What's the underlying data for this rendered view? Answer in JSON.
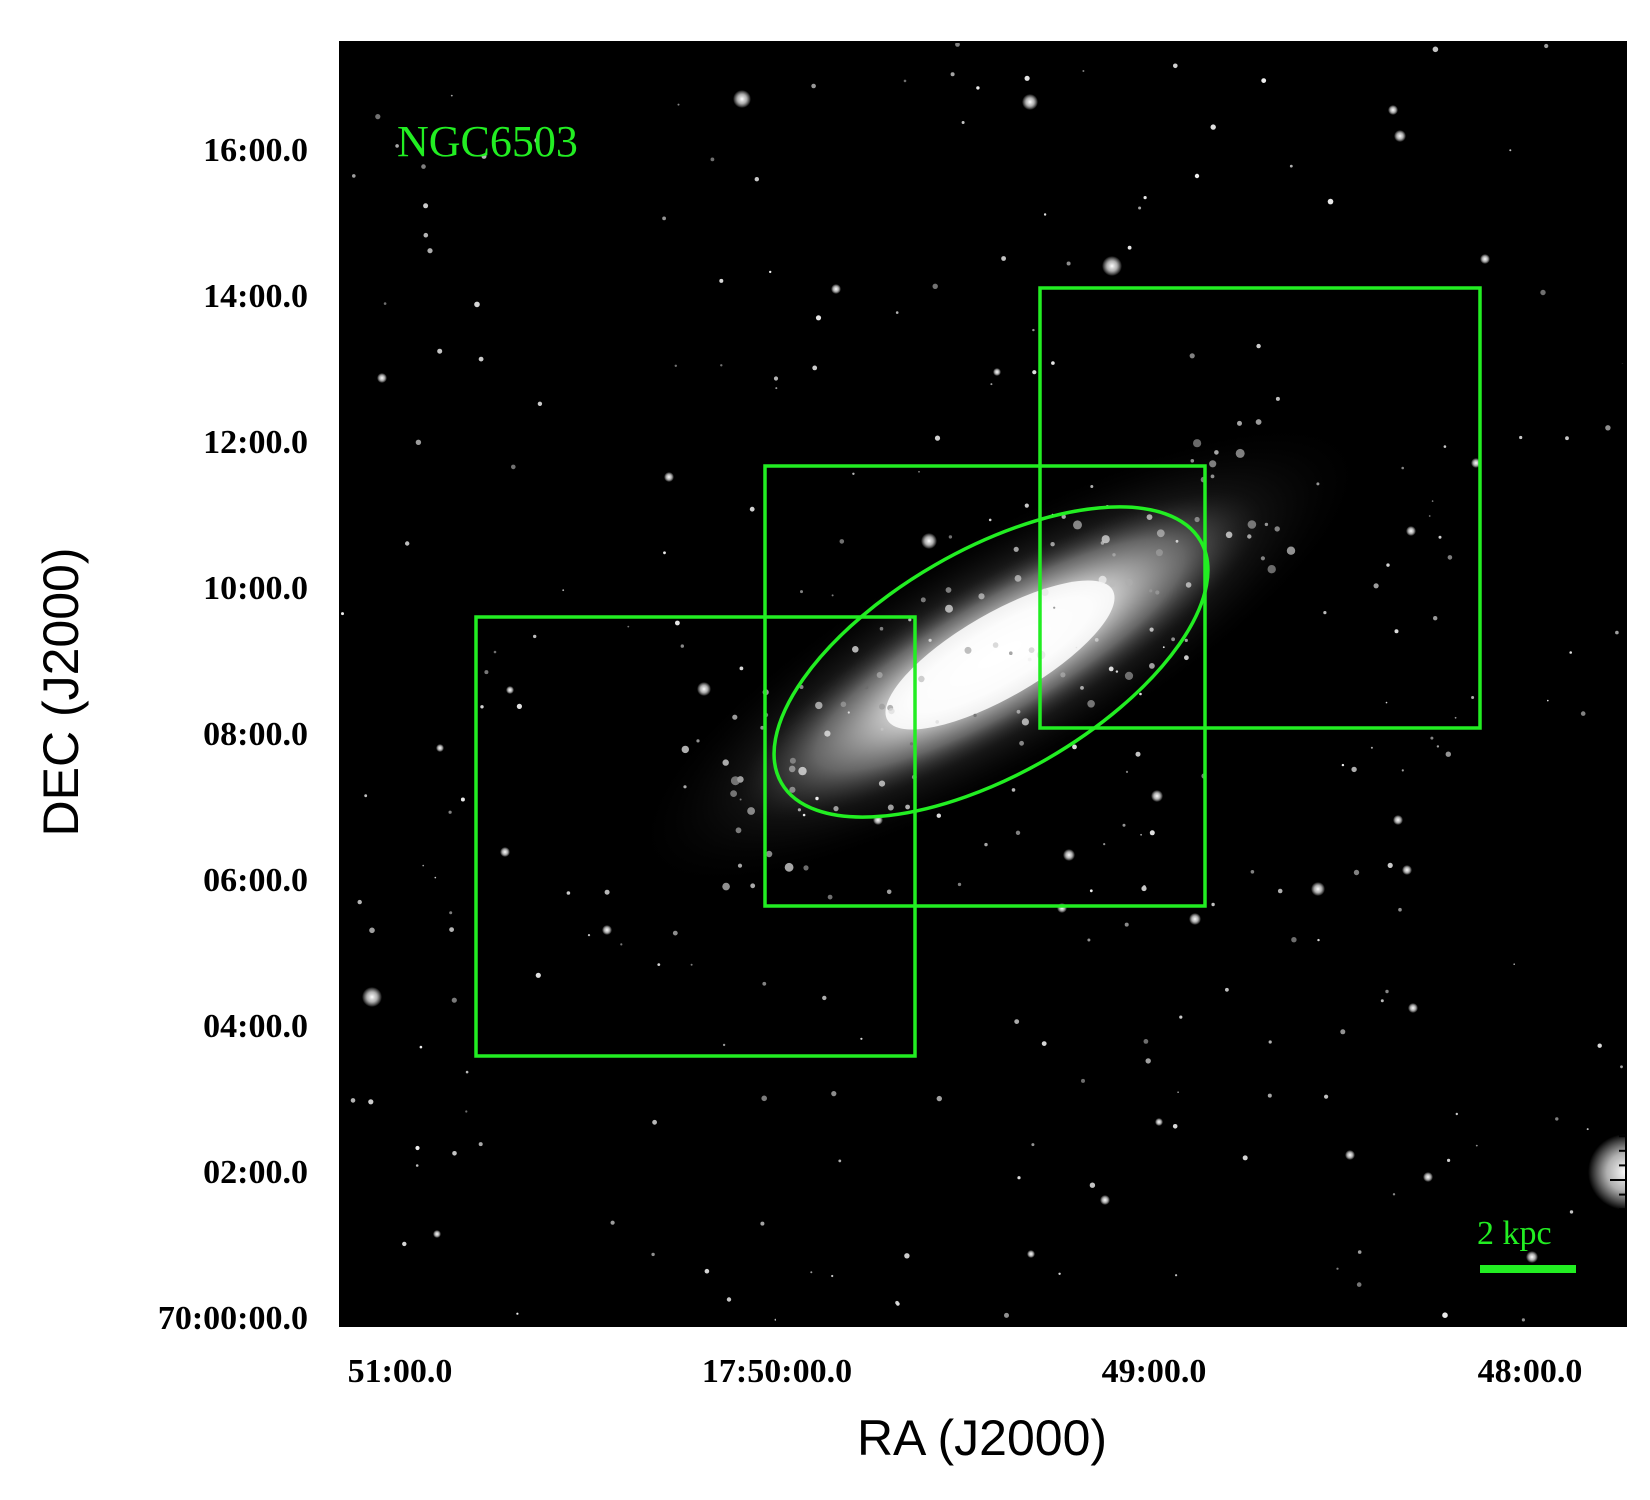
{
  "figure": {
    "object_label": "NGC6503",
    "scale_bar_label": "2 kpc",
    "overlay_color": "#22ee22",
    "image_background": "#000000",
    "x_axis": {
      "title": "RA (J2000)",
      "ticks": [
        "51:00.0",
        "17:50:00.0",
        "49:00.0",
        "48:00.0"
      ]
    },
    "y_axis": {
      "title": "DEC (J2000)",
      "ticks": [
        "16:00.0",
        "14:00.0",
        "12:00.0",
        "10:00.0",
        "08:00.0",
        "06:00.0",
        "04:00.0",
        "02:00.0",
        "70:00:00.0"
      ]
    },
    "overlays": {
      "fields": [
        "field-east",
        "field-center",
        "field-west"
      ],
      "ellipse": "galaxy-aperture-ellipse"
    }
  }
}
